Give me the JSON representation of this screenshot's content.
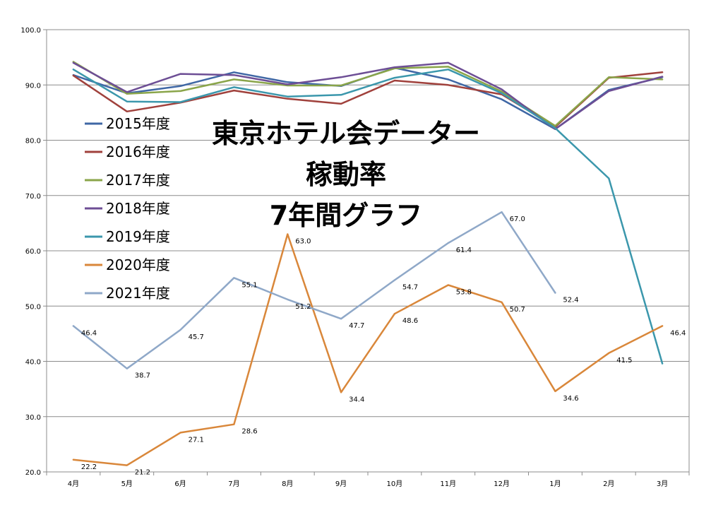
{
  "chart_data": {
    "type": "line",
    "title_lines": [
      "東京ホテル会データー",
      "稼動率",
      "7年間グラフ"
    ],
    "categories": [
      "4月",
      "5月",
      "6月",
      "7月",
      "8月",
      "9月",
      "10月",
      "11月",
      "12月",
      "1月",
      "2月",
      "3月"
    ],
    "ylim": [
      20,
      100
    ],
    "yticks": [
      "20.0",
      "30.0",
      "40.0",
      "50.0",
      "60.0",
      "70.0",
      "80.0",
      "90.0",
      "100.0"
    ],
    "grid": true,
    "legend_position": "left",
    "series": [
      {
        "name": "2015年度",
        "color": "#3F67A5",
        "values": [
          91.8,
          88.5,
          89.8,
          92.3,
          90.5,
          89.8,
          93.1,
          91.0,
          87.4,
          82.0,
          89.1,
          91.4
        ],
        "labels": false
      },
      {
        "name": "2016年度",
        "color": "#A0413C",
        "values": [
          91.7,
          85.2,
          86.8,
          89.0,
          87.5,
          86.6,
          90.8,
          90.0,
          88.3,
          82.4,
          91.3,
          92.3
        ],
        "labels": false
      },
      {
        "name": "2017年度",
        "color": "#8AA54A",
        "values": [
          94.2,
          88.4,
          88.9,
          91.0,
          89.9,
          89.9,
          93.0,
          93.3,
          88.8,
          82.6,
          91.4,
          91.0
        ],
        "labels": false
      },
      {
        "name": "2018年度",
        "color": "#6D4E95",
        "values": [
          94.0,
          88.7,
          92.0,
          91.8,
          90.1,
          91.4,
          93.2,
          94.0,
          89.2,
          82.0,
          88.9,
          91.5
        ],
        "labels": false
      },
      {
        "name": "2019年度",
        "color": "#3B97AC",
        "values": [
          92.8,
          87.0,
          86.9,
          89.6,
          87.9,
          88.2,
          91.3,
          92.8,
          88.5,
          82.2,
          73.1,
          39.6
        ],
        "labels": false
      },
      {
        "name": "2020年度",
        "color": "#D9873A",
        "values": [
          22.2,
          21.2,
          27.1,
          28.6,
          63.0,
          34.4,
          48.6,
          53.8,
          50.7,
          34.6,
          41.5,
          46.4
        ],
        "labels": true
      },
      {
        "name": "2021年度",
        "color": "#8FA8C8",
        "values": [
          46.4,
          38.7,
          45.7,
          55.1,
          51.2,
          47.7,
          54.7,
          61.4,
          67.0,
          52.4,
          null,
          null
        ],
        "labels": true
      }
    ]
  }
}
